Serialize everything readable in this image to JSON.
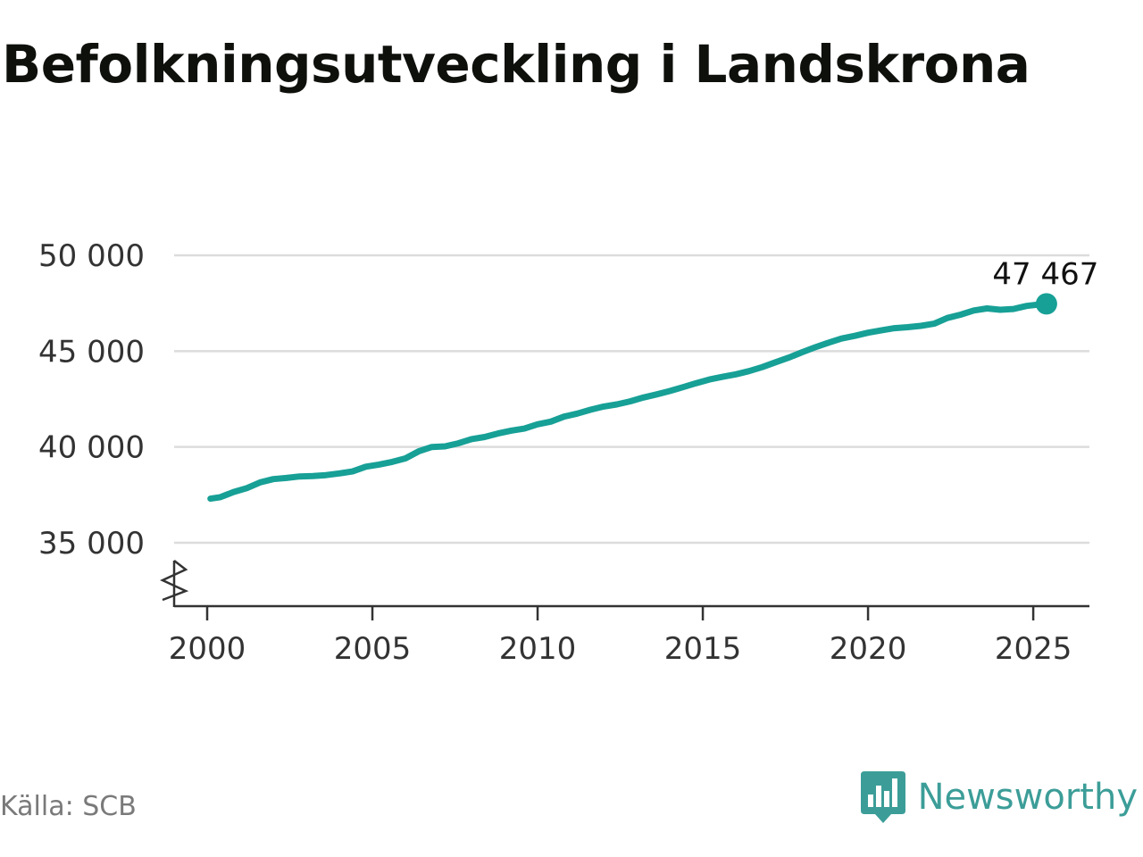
{
  "title": "Befolkningsutveckling i Landskrona",
  "source": "Källa: SCB",
  "brand": {
    "name": "Newsworthy",
    "logo_icon": "bar-chart-speech-bubble-icon",
    "color": "#3c9d98"
  },
  "colors": {
    "line": "#17a096",
    "grid": "#dcdcdc",
    "axis": "#333333"
  },
  "chart_data": {
    "type": "line",
    "title": "Befolkningsutveckling i Landskrona",
    "xlabel": "",
    "ylabel": "",
    "xlim": [
      1999,
      2026.7
    ],
    "ylim": [
      31700,
      50000
    ],
    "y_axis_break": true,
    "grid": true,
    "xticks": [
      2000,
      2005,
      2010,
      2015,
      2020,
      2025
    ],
    "xtick_labels": [
      "2000",
      "2005",
      "2010",
      "2015",
      "2020",
      "2025"
    ],
    "yticks": [
      35000,
      40000,
      45000,
      50000
    ],
    "ytick_labels": [
      "35 000",
      "40 000",
      "45 000",
      "50 000"
    ],
    "end_label": "47 467",
    "series": [
      {
        "x": [
          2000.1,
          2000.4,
          2000.8,
          2001.2,
          2001.6,
          2002.0,
          2002.4,
          2002.8,
          2003.2,
          2003.6,
          2004.0,
          2004.4,
          2004.8,
          2005.2,
          2005.6,
          2006.0,
          2006.4,
          2006.8,
          2007.2,
          2007.6,
          2008.0,
          2008.4,
          2008.8,
          2009.2,
          2009.6,
          2010.0,
          2010.4,
          2010.8,
          2011.2,
          2011.6,
          2012.0,
          2012.4,
          2012.8,
          2013.2,
          2013.6,
          2014.0,
          2014.4,
          2014.8,
          2015.2,
          2015.6,
          2016.0,
          2016.4,
          2016.8,
          2017.2,
          2017.6,
          2018.0,
          2018.4,
          2018.8,
          2019.2,
          2019.6,
          2020.0,
          2020.4,
          2020.8,
          2021.2,
          2021.6,
          2022.0,
          2022.4,
          2022.8,
          2023.2,
          2023.6,
          2024.0,
          2024.4,
          2024.8,
          2025.2,
          2025.4
        ],
        "values": [
          37300,
          37380,
          37650,
          37850,
          38150,
          38320,
          38380,
          38460,
          38480,
          38530,
          38620,
          38720,
          38970,
          39080,
          39220,
          39400,
          39770,
          40000,
          40030,
          40190,
          40410,
          40520,
          40700,
          40850,
          40960,
          41180,
          41320,
          41580,
          41740,
          41940,
          42110,
          42220,
          42380,
          42580,
          42740,
          42920,
          43120,
          43330,
          43520,
          43660,
          43790,
          43960,
          44170,
          44420,
          44660,
          44940,
          45200,
          45440,
          45660,
          45800,
          45960,
          46080,
          46200,
          46250,
          46320,
          46430,
          46730,
          46900,
          47120,
          47230,
          47160,
          47200,
          47360,
          47440,
          47467
        ]
      }
    ]
  }
}
